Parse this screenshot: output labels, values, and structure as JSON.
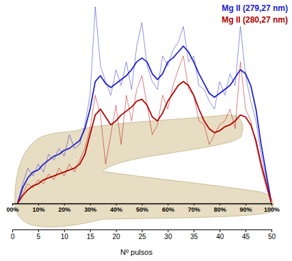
{
  "chart_data": {
    "type": "line",
    "xlabel": "Nº pulsos",
    "xlim": [
      0,
      50
    ],
    "xticks": [
      0,
      5,
      10,
      15,
      20,
      25,
      30,
      35,
      40,
      45,
      50
    ],
    "x2lim": [
      0,
      100
    ],
    "x2ticks": [
      {
        "value": 0,
        "label": "00%"
      },
      {
        "value": 10,
        "label": "10%"
      },
      {
        "value": 20,
        "label": "20%"
      },
      {
        "value": 30,
        "label": "30%"
      },
      {
        "value": 40,
        "label": "40%"
      },
      {
        "value": 50,
        "label": "50%"
      },
      {
        "value": 60,
        "label": "60%"
      },
      {
        "value": 70,
        "label": "70%"
      },
      {
        "value": 80,
        "label": "80%"
      },
      {
        "value": 90,
        "label": "90%"
      },
      {
        "value": 100,
        "label": "100%"
      }
    ],
    "ylim": [
      0,
      100
    ],
    "tick_labels": "x",
    "legend": "top-right",
    "x": [
      1,
      2,
      3,
      4,
      5,
      6,
      7,
      8,
      9,
      10,
      11,
      12,
      13,
      14,
      15,
      16,
      17,
      18,
      19,
      20,
      21,
      22,
      23,
      24,
      25,
      26,
      27,
      28,
      29,
      30,
      31,
      32,
      33,
      34,
      35,
      36,
      37,
      38,
      39,
      40,
      41,
      42,
      43,
      44,
      45,
      46,
      47,
      48,
      49,
      50
    ],
    "series": [
      {
        "name": "Mg II (279,27 nm)",
        "color": "#2020cc",
        "values": [
          0,
          8,
          13,
          16,
          17,
          20,
          22,
          24,
          25,
          27,
          28,
          30,
          32,
          38,
          48,
          62,
          65,
          61,
          59,
          61,
          63,
          65,
          68,
          72,
          74,
          72,
          66,
          63,
          66,
          72,
          74,
          77,
          80,
          77,
          72,
          66,
          61,
          56,
          54,
          56,
          58,
          60,
          64,
          68,
          66,
          60,
          48,
          30,
          15,
          0
        ],
        "raw_values": [
          0,
          10,
          18,
          14,
          20,
          16,
          25,
          22,
          28,
          24,
          35,
          28,
          30,
          40,
          55,
          100,
          70,
          62,
          55,
          68,
          60,
          72,
          58,
          80,
          92,
          70,
          62,
          58,
          75,
          70,
          78,
          82,
          90,
          72,
          75,
          60,
          58,
          52,
          48,
          62,
          55,
          66,
          60,
          90,
          65,
          52,
          42,
          25,
          12,
          0
        ]
      },
      {
        "name": "Mg II (280,27 nm)",
        "color": "#b00000",
        "values": [
          0,
          4,
          7,
          9,
          10,
          12,
          13,
          14,
          15,
          16,
          17,
          18,
          20,
          25,
          35,
          45,
          48,
          44,
          40,
          42,
          45,
          47,
          49,
          52,
          53,
          50,
          44,
          42,
          46,
          52,
          56,
          60,
          62,
          60,
          55,
          48,
          42,
          38,
          36,
          37,
          39,
          40,
          42,
          45,
          44,
          40,
          32,
          20,
          10,
          0
        ],
        "raw_values": [
          0,
          5,
          10,
          8,
          12,
          10,
          15,
          12,
          18,
          14,
          20,
          16,
          22,
          28,
          38,
          55,
          45,
          20,
          35,
          50,
          30,
          55,
          42,
          58,
          65,
          50,
          35,
          40,
          55,
          48,
          60,
          68,
          75,
          58,
          55,
          42,
          40,
          30,
          35,
          40,
          42,
          48,
          38,
          72,
          48,
          42,
          30,
          18,
          8,
          0
        ]
      }
    ]
  }
}
